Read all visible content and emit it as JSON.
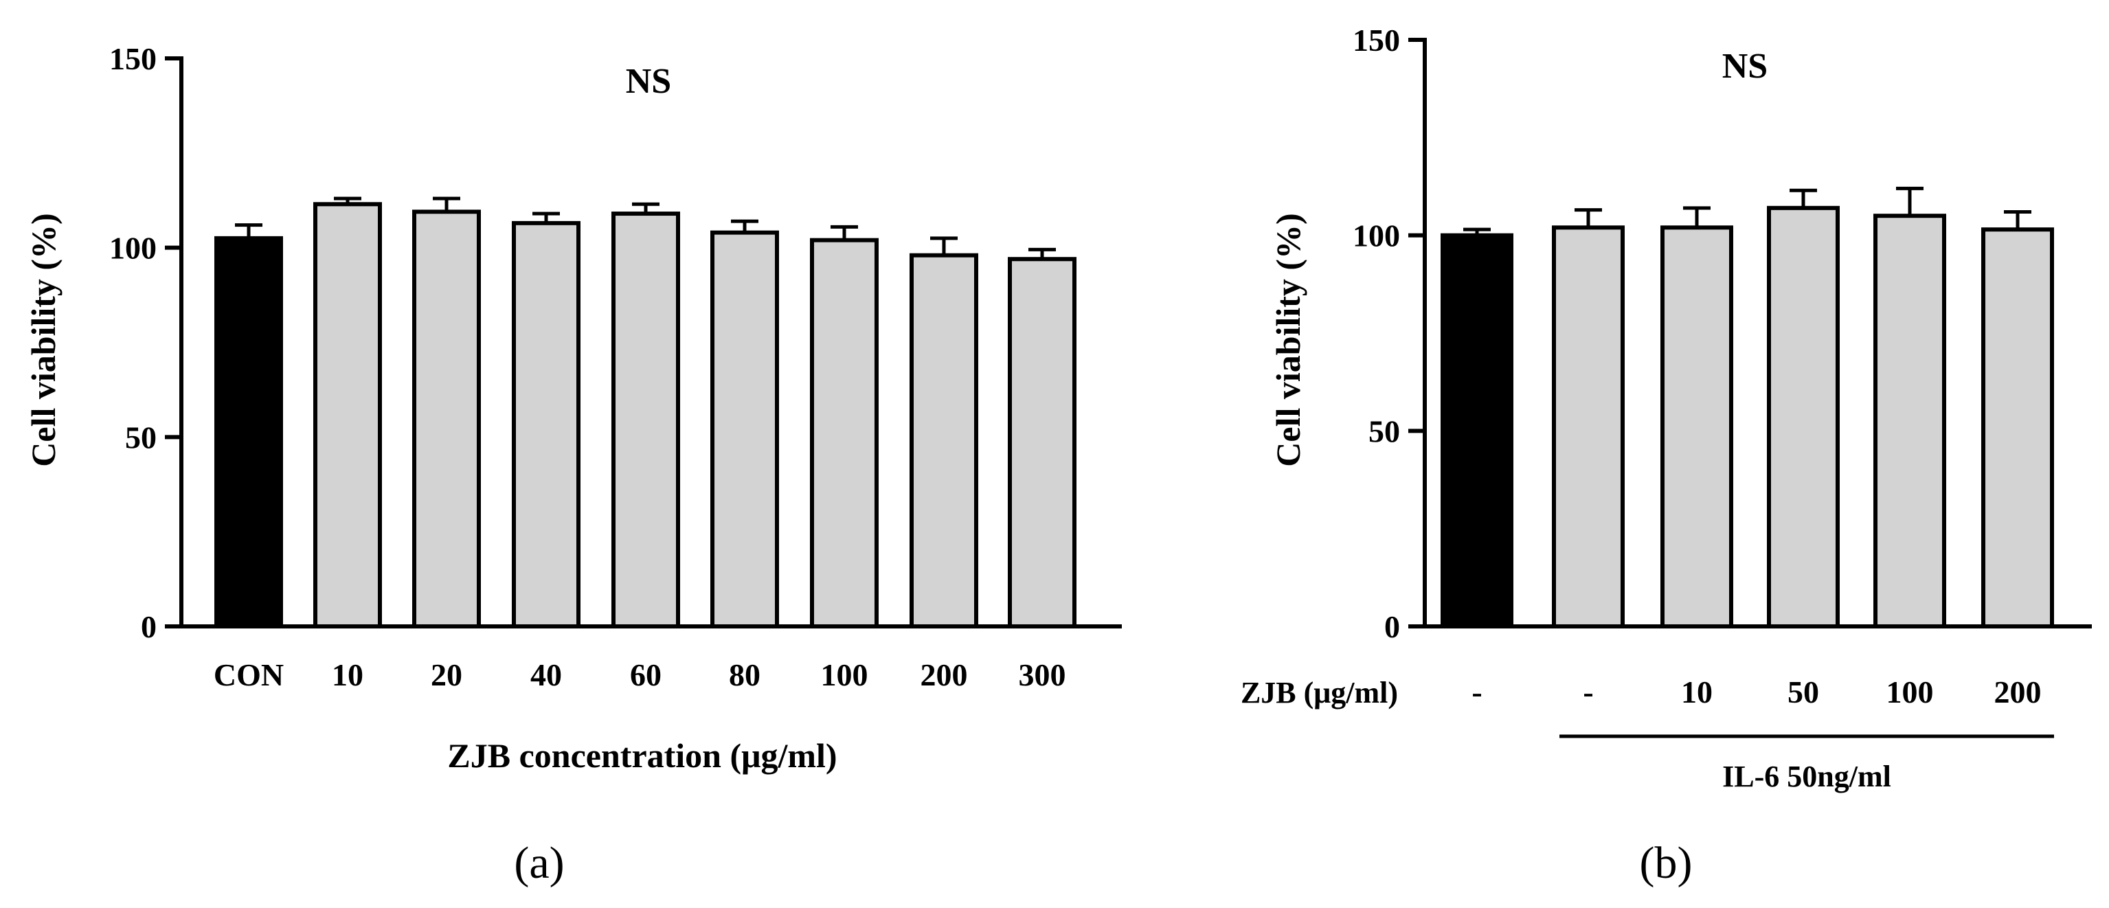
{
  "chart_data": [
    {
      "panel": "(a)",
      "type": "bar",
      "annotation": "NS",
      "ylabel": "Cell viability (%)",
      "xlabel": "ZJB concentration (μg/ml)",
      "ylim": [
        0,
        150
      ],
      "yticks": [
        "0",
        "50",
        "100",
        "150"
      ],
      "categories": [
        "CON",
        "10",
        "20",
        "40",
        "60",
        "80",
        "100",
        "200",
        "300"
      ],
      "values": [
        102.5,
        111.5,
        109.5,
        106.5,
        109,
        104,
        102,
        98,
        97
      ],
      "errors": [
        3.5,
        1.5,
        3.5,
        2.5,
        2.5,
        3,
        3.5,
        4.5,
        2.5
      ],
      "colors": [
        "#000000",
        "#d3d3d3",
        "#d3d3d3",
        "#d3d3d3",
        "#d3d3d3",
        "#d3d3d3",
        "#d3d3d3",
        "#d3d3d3",
        "#d3d3d3"
      ]
    },
    {
      "panel": "(b)",
      "type": "bar",
      "annotation": "NS",
      "ylabel": "Cell viability (%)",
      "row_label": "ZJB (μg/ml)",
      "group_label": "IL-6 50ng/ml",
      "ylim": [
        0,
        150
      ],
      "yticks": [
        "0",
        "50",
        "100",
        "150"
      ],
      "categories": [
        "-",
        "-",
        "10",
        "50",
        "100",
        "200"
      ],
      "values": [
        100,
        102,
        102,
        107,
        105,
        101.5
      ],
      "errors": [
        1.5,
        4.5,
        5,
        4.5,
        7,
        4.5
      ],
      "colors": [
        "#000000",
        "#d3d3d3",
        "#d3d3d3",
        "#d3d3d3",
        "#d3d3d3",
        "#d3d3d3"
      ]
    }
  ]
}
